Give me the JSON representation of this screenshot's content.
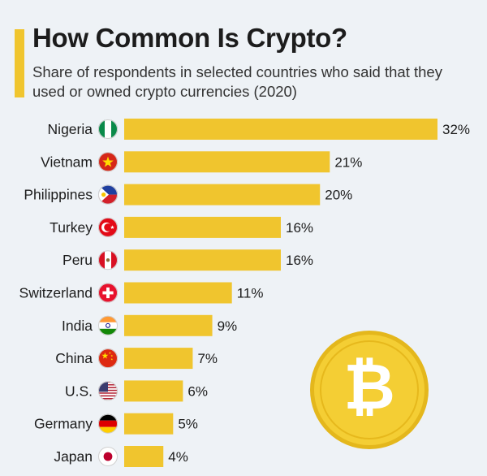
{
  "header": {
    "title": "How Common Is Crypto?",
    "subtitle": "Share of respondents in selected countries who said that they used or owned crypto currencies (2020)"
  },
  "chart_data": {
    "type": "bar",
    "orientation": "horizontal",
    "title": "How Common Is Crypto?",
    "subtitle": "Share of respondents in selected countries who said that they used or owned crypto currencies (2020)",
    "categories": [
      "Nigeria",
      "Vietnam",
      "Philippines",
      "Turkey",
      "Peru",
      "Switzerland",
      "India",
      "China",
      "U.S.",
      "Germany",
      "Japan"
    ],
    "values": [
      32,
      21,
      20,
      16,
      16,
      11,
      9,
      7,
      6,
      5,
      4
    ],
    "labels": [
      "32%",
      "21%",
      "20%",
      "16%",
      "16%",
      "11%",
      "9%",
      "7%",
      "6%",
      "5%",
      "4%"
    ],
    "flag_icons": [
      "nigeria-flag-icon",
      "vietnam-flag-icon",
      "philippines-flag-icon",
      "turkey-flag-icon",
      "peru-flag-icon",
      "switzerland-flag-icon",
      "india-flag-icon",
      "china-flag-icon",
      "us-flag-icon",
      "germany-flag-icon",
      "japan-flag-icon"
    ],
    "unit": "%",
    "xlim": [
      0,
      32
    ],
    "grid": false,
    "legend": "none",
    "bar_color": "#f0c52e"
  },
  "decoration": {
    "coin_icon": "bitcoin-coin-icon",
    "coin_symbol": "₿"
  },
  "colors": {
    "background": "#eef2f6",
    "accent": "#f0c52e",
    "text": "#1c1c1c"
  }
}
